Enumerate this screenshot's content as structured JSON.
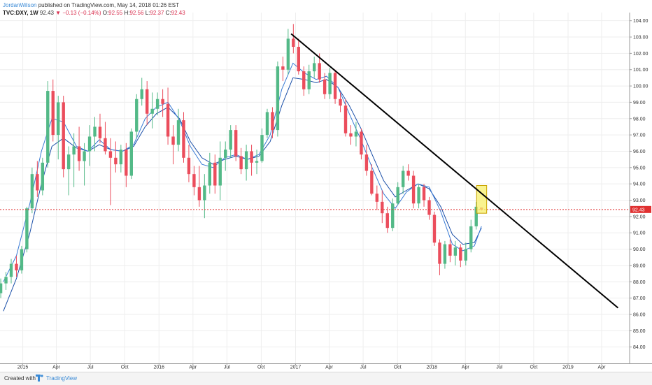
{
  "header": {
    "author": "JordanWilson",
    "published": "published on TradingView.com, May 14, 2018 01:26 EST",
    "symbol": "TVC:DXY, 1W",
    "last": "92.43",
    "change": "−0.13 (−0.14%)",
    "o_label": "O:",
    "o": "92.55",
    "h_label": "H:",
    "h": "92.56",
    "l_label": "L:",
    "l": "92.37",
    "c_label": "C:",
    "c": "92.43"
  },
  "footer": {
    "created_label": "Created with",
    "brand": "TradingView"
  },
  "colors": {
    "up": "#53b987",
    "down": "#eb4d5c",
    "ma_fast": "#3a7bd5",
    "ma_slow": "#1a4fa8",
    "trendline": "#000000",
    "price_line": "#e03030",
    "highlight_fill": "#f7ef6a",
    "highlight_stroke": "#c9a400"
  },
  "chart_data": {
    "type": "candlestick",
    "title": "TVC:DXY, 1W",
    "ylim": [
      83.0,
      104.5
    ],
    "xlim": [
      "2014-11-01",
      "2019-06-15"
    ],
    "y_ticks": [
      84,
      85,
      86,
      87,
      88,
      89,
      90,
      91,
      92,
      93,
      94,
      95,
      96,
      97,
      98,
      99,
      100,
      101,
      102,
      103,
      104
    ],
    "y_tick_labels": [
      "84.00",
      "85.00",
      "86.00",
      "87.00",
      "88.00",
      "89.00",
      "90.00",
      "91.00",
      "92.00",
      "93.00",
      "94.00",
      "95.00",
      "96.00",
      "97.00",
      "98.00",
      "99.00",
      "100.00",
      "101.00",
      "102.00",
      "103.00",
      "104.00"
    ],
    "x_ticks": [
      {
        "date": "2015-01-01",
        "label": "2015"
      },
      {
        "date": "2015-04-01",
        "label": "Apr"
      },
      {
        "date": "2015-07-01",
        "label": "Jul"
      },
      {
        "date": "2015-10-01",
        "label": "Oct"
      },
      {
        "date": "2016-01-01",
        "label": "2016"
      },
      {
        "date": "2016-04-01",
        "label": "Apr"
      },
      {
        "date": "2016-07-01",
        "label": "Jul"
      },
      {
        "date": "2016-10-01",
        "label": "Oct"
      },
      {
        "date": "2017-01-01",
        "label": "2017"
      },
      {
        "date": "2017-04-01",
        "label": "Apr"
      },
      {
        "date": "2017-07-01",
        "label": "Jul"
      },
      {
        "date": "2017-10-01",
        "label": "Oct"
      },
      {
        "date": "2018-01-01",
        "label": "2018"
      },
      {
        "date": "2018-04-01",
        "label": "Apr"
      },
      {
        "date": "2018-07-01",
        "label": "Jul"
      },
      {
        "date": "2018-10-01",
        "label": "Oct"
      },
      {
        "date": "2019-01-01",
        "label": "2019"
      },
      {
        "date": "2019-04-01",
        "label": "Apr"
      }
    ],
    "current_price": 92.43,
    "current_price_label": "92.43",
    "trendline": {
      "start": {
        "date": "2016-12-20",
        "value": 103.2
      },
      "end": {
        "date": "2019-05-15",
        "value": 86.4
      }
    },
    "highlight": {
      "x0": "2018-05-01",
      "x1": "2018-05-28",
      "y0": 92.2,
      "y1": 93.9
    },
    "ma_fast": {
      "x": [
        "2014-11-10",
        "2014-12-15",
        "2015-01-20",
        "2015-02-20",
        "2015-03-20",
        "2015-04-20",
        "2015-05-25",
        "2015-06-25",
        "2015-07-25",
        "2015-08-25",
        "2015-09-25",
        "2015-10-25",
        "2015-11-25",
        "2015-12-25",
        "2016-01-25",
        "2016-02-25",
        "2016-03-25",
        "2016-04-25",
        "2016-05-25",
        "2016-06-25",
        "2016-07-25",
        "2016-08-25",
        "2016-09-25",
        "2016-10-25",
        "2016-11-25",
        "2016-12-25",
        "2017-01-25",
        "2017-02-25",
        "2017-03-25",
        "2017-04-25",
        "2017-05-25",
        "2017-06-25",
        "2017-07-25",
        "2017-08-25",
        "2017-09-25",
        "2017-10-25",
        "2017-11-25",
        "2017-12-25",
        "2018-01-25",
        "2018-02-25",
        "2018-03-25",
        "2018-04-25",
        "2018-05-14"
      ],
      "values": [
        88.0,
        89.6,
        92.8,
        96.0,
        98.0,
        97.8,
        96.3,
        96.0,
        96.7,
        96.1,
        96.0,
        96.4,
        98.0,
        98.7,
        99.0,
        97.9,
        96.3,
        95.2,
        95.0,
        95.6,
        95.8,
        95.5,
        95.8,
        97.0,
        99.8,
        101.4,
        100.8,
        100.4,
        100.6,
        99.9,
        98.3,
        96.7,
        95.0,
        93.4,
        92.5,
        93.5,
        94.0,
        93.8,
        92.3,
        90.3,
        89.9,
        90.2,
        91.4
      ]
    },
    "ma_slow": {
      "x": [
        "2014-11-10",
        "2014-12-15",
        "2015-01-20",
        "2015-02-20",
        "2015-03-20",
        "2015-04-20",
        "2015-05-25",
        "2015-06-25",
        "2015-07-25",
        "2015-08-25",
        "2015-09-25",
        "2015-10-25",
        "2015-11-25",
        "2015-12-25",
        "2016-01-25",
        "2016-02-25",
        "2016-03-25",
        "2016-04-25",
        "2016-05-25",
        "2016-06-25",
        "2016-07-25",
        "2016-08-25",
        "2016-09-25",
        "2016-10-25",
        "2016-11-25",
        "2016-12-25",
        "2017-01-25",
        "2017-02-25",
        "2017-03-25",
        "2017-04-25",
        "2017-05-25",
        "2017-06-25",
        "2017-07-25",
        "2017-08-25",
        "2017-09-25",
        "2017-10-25",
        "2017-11-25",
        "2017-12-25",
        "2018-01-25",
        "2018-02-25",
        "2018-03-25",
        "2018-04-25",
        "2018-05-14"
      ],
      "values": [
        86.2,
        88.2,
        91.0,
        94.0,
        96.3,
        96.8,
        96.2,
        96.0,
        96.4,
        96.1,
        96.0,
        96.3,
        97.5,
        98.3,
        98.7,
        98.0,
        96.6,
        95.6,
        95.2,
        95.5,
        95.7,
        95.5,
        95.7,
        96.6,
        98.8,
        100.5,
        100.4,
        100.2,
        100.4,
        99.9,
        98.8,
        97.4,
        95.8,
        94.2,
        93.2,
        93.6,
        94.0,
        93.7,
        92.6,
        90.9,
        90.3,
        90.4,
        91.3
      ]
    },
    "candles": [
      [
        "2014-11-03",
        87.3,
        88.2,
        87.0,
        87.9
      ],
      [
        "2014-11-17",
        87.9,
        88.6,
        87.5,
        88.3
      ],
      [
        "2014-12-01",
        88.3,
        89.4,
        87.9,
        89.1
      ],
      [
        "2014-12-15",
        89.1,
        89.6,
        88.3,
        88.7
      ],
      [
        "2014-12-29",
        88.7,
        90.2,
        88.5,
        90.0
      ],
      [
        "2015-01-12",
        90.0,
        92.6,
        89.8,
        92.5
      ],
      [
        "2015-01-26",
        92.5,
        95.0,
        92.2,
        94.6
      ],
      [
        "2015-02-09",
        94.6,
        95.4,
        93.2,
        93.6
      ],
      [
        "2015-02-23",
        93.6,
        95.6,
        93.3,
        95.3
      ],
      [
        "2015-03-09",
        95.3,
        100.3,
        95.0,
        99.7
      ],
      [
        "2015-03-23",
        99.7,
        100.4,
        96.6,
        97.0
      ],
      [
        "2015-04-06",
        97.0,
        99.4,
        95.5,
        99.0
      ],
      [
        "2015-04-20",
        99.0,
        99.4,
        94.4,
        94.9
      ],
      [
        "2015-05-04",
        94.9,
        96.3,
        93.3,
        95.8
      ],
      [
        "2015-05-18",
        95.8,
        97.1,
        93.8,
        96.3
      ],
      [
        "2015-06-01",
        96.3,
        97.5,
        94.8,
        95.4
      ],
      [
        "2015-06-15",
        95.4,
        96.5,
        93.9,
        96.0
      ],
      [
        "2015-06-29",
        96.0,
        97.6,
        95.1,
        96.9
      ],
      [
        "2015-07-13",
        96.9,
        98.1,
        96.0,
        97.5
      ],
      [
        "2015-07-27",
        97.5,
        98.3,
        96.5,
        96.8
      ],
      [
        "2015-08-10",
        96.8,
        97.8,
        95.8,
        96.0
      ],
      [
        "2015-08-24",
        96.0,
        96.8,
        92.7,
        95.6
      ],
      [
        "2015-09-07",
        95.6,
        96.6,
        94.7,
        95.2
      ],
      [
        "2015-09-21",
        95.2,
        96.4,
        94.7,
        96.1
      ],
      [
        "2015-10-05",
        96.1,
        96.5,
        93.8,
        94.5
      ],
      [
        "2015-10-19",
        94.5,
        97.4,
        94.3,
        97.2
      ],
      [
        "2015-11-02",
        97.2,
        99.5,
        96.8,
        99.2
      ],
      [
        "2015-11-16",
        99.2,
        100.5,
        98.8,
        99.8
      ],
      [
        "2015-11-30",
        99.8,
        100.3,
        97.6,
        98.3
      ],
      [
        "2015-12-14",
        98.3,
        99.6,
        97.4,
        98.6
      ],
      [
        "2015-12-28",
        98.6,
        99.6,
        98.2,
        99.2
      ],
      [
        "2016-01-11",
        99.2,
        99.8,
        98.1,
        98.9
      ],
      [
        "2016-01-25",
        98.9,
        99.9,
        96.4,
        96.9
      ],
      [
        "2016-02-08",
        96.9,
        97.6,
        95.2,
        96.4
      ],
      [
        "2016-02-22",
        96.4,
        98.6,
        96.0,
        97.9
      ],
      [
        "2016-03-07",
        97.9,
        98.4,
        95.3,
        95.6
      ],
      [
        "2016-03-21",
        95.6,
        96.4,
        94.1,
        94.6
      ],
      [
        "2016-04-04",
        94.6,
        95.1,
        93.3,
        93.8
      ],
      [
        "2016-04-18",
        93.8,
        95.1,
        92.6,
        93.0
      ],
      [
        "2016-05-02",
        93.0,
        94.6,
        91.9,
        93.9
      ],
      [
        "2016-05-16",
        93.9,
        95.9,
        93.4,
        95.3
      ],
      [
        "2016-05-30",
        95.3,
        95.8,
        93.4,
        93.9
      ],
      [
        "2016-06-13",
        93.9,
        96.6,
        93.0,
        95.6
      ],
      [
        "2016-06-27",
        95.6,
        96.6,
        94.8,
        96.1
      ],
      [
        "2016-07-11",
        96.1,
        97.6,
        95.6,
        97.3
      ],
      [
        "2016-07-25",
        97.3,
        97.6,
        95.4,
        95.7
      ],
      [
        "2016-08-08",
        95.7,
        96.2,
        94.6,
        94.9
      ],
      [
        "2016-08-22",
        94.9,
        96.4,
        94.2,
        96.0
      ],
      [
        "2016-09-05",
        96.0,
        96.4,
        94.5,
        95.3
      ],
      [
        "2016-09-19",
        95.3,
        96.1,
        94.6,
        95.4
      ],
      [
        "2016-10-03",
        95.4,
        97.4,
        95.3,
        97.0
      ],
      [
        "2016-10-17",
        97.0,
        98.6,
        96.8,
        98.4
      ],
      [
        "2016-10-31",
        98.4,
        98.7,
        96.8,
        97.3
      ],
      [
        "2016-11-14",
        97.3,
        101.5,
        96.9,
        101.2
      ],
      [
        "2016-11-28",
        101.2,
        101.8,
        100.3,
        101.0
      ],
      [
        "2016-12-12",
        101.0,
        103.5,
        100.7,
        102.9
      ],
      [
        "2016-12-26",
        102.9,
        103.8,
        102.0,
        102.4
      ],
      [
        "2017-01-09",
        102.4,
        102.9,
        100.7,
        100.9
      ],
      [
        "2017-01-23",
        100.9,
        101.2,
        99.4,
        99.8
      ],
      [
        "2017-02-06",
        99.8,
        101.3,
        99.5,
        100.9
      ],
      [
        "2017-02-20",
        100.9,
        101.8,
        100.5,
        101.4
      ],
      [
        "2017-03-06",
        101.4,
        102.0,
        100.2,
        100.4
      ],
      [
        "2017-03-20",
        100.4,
        100.8,
        99.2,
        99.5
      ],
      [
        "2017-04-03",
        99.5,
        101.1,
        99.2,
        100.8
      ],
      [
        "2017-04-17",
        100.8,
        101.0,
        98.9,
        99.2
      ],
      [
        "2017-05-01",
        99.2,
        99.6,
        98.4,
        98.8
      ],
      [
        "2017-05-15",
        98.8,
        99.2,
        96.9,
        97.1
      ],
      [
        "2017-05-29",
        97.1,
        97.6,
        96.4,
        96.9
      ],
      [
        "2017-06-12",
        96.9,
        97.8,
        96.3,
        97.2
      ],
      [
        "2017-06-26",
        97.2,
        97.4,
        95.5,
        95.8
      ],
      [
        "2017-07-10",
        95.8,
        96.4,
        94.5,
        94.8
      ],
      [
        "2017-07-24",
        94.8,
        95.2,
        93.3,
        93.4
      ],
      [
        "2017-08-07",
        93.4,
        93.9,
        92.4,
        92.9
      ],
      [
        "2017-08-21",
        92.9,
        93.6,
        91.6,
        92.2
      ],
      [
        "2017-09-04",
        92.2,
        92.6,
        91.0,
        91.3
      ],
      [
        "2017-09-18",
        91.3,
        93.1,
        91.1,
        92.8
      ],
      [
        "2017-10-02",
        92.8,
        94.1,
        92.7,
        93.8
      ],
      [
        "2017-10-16",
        93.8,
        95.1,
        93.4,
        94.8
      ],
      [
        "2017-10-30",
        94.8,
        95.2,
        94.2,
        94.5
      ],
      [
        "2017-11-13",
        94.5,
        94.8,
        92.5,
        92.8
      ],
      [
        "2017-11-27",
        92.8,
        94.0,
        92.5,
        93.8
      ],
      [
        "2017-12-11",
        93.8,
        94.0,
        92.6,
        93.0
      ],
      [
        "2017-12-25",
        93.0,
        93.2,
        91.8,
        92.1
      ],
      [
        "2018-01-08",
        92.1,
        92.3,
        90.2,
        90.4
      ],
      [
        "2018-01-22",
        90.4,
        90.6,
        88.4,
        89.1
      ],
      [
        "2018-02-05",
        89.1,
        90.5,
        88.8,
        90.3
      ],
      [
        "2018-02-19",
        90.3,
        90.6,
        89.2,
        89.6
      ],
      [
        "2018-03-05",
        89.6,
        90.5,
        89.0,
        90.1
      ],
      [
        "2018-03-19",
        90.1,
        90.3,
        88.9,
        89.3
      ],
      [
        "2018-04-02",
        89.3,
        90.4,
        89.0,
        90.0
      ],
      [
        "2018-04-16",
        90.0,
        91.8,
        89.8,
        91.4
      ],
      [
        "2018-04-30",
        91.4,
        92.9,
        91.2,
        92.6
      ],
      [
        "2018-05-14",
        92.55,
        92.56,
        92.37,
        92.43
      ]
    ]
  }
}
